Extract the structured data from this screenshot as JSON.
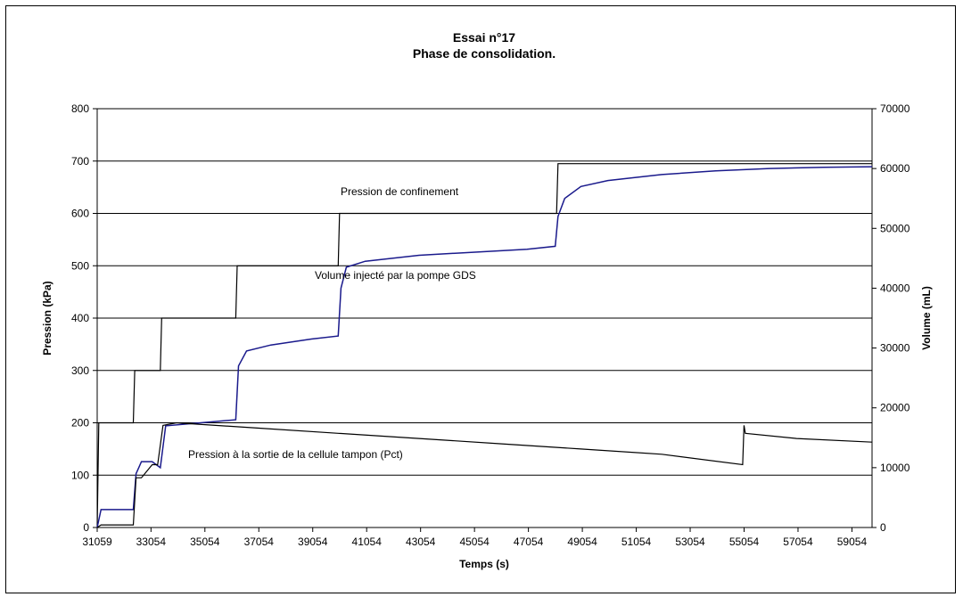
{
  "chart_data": {
    "type": "line",
    "title": "Essai n°17",
    "subtitle": "Phase de consolidation.",
    "xlabel": "Temps (s)",
    "ylabel_left": "Pression (kPa)",
    "ylabel_right": "Volume (mL)",
    "xlim": [
      31059,
      59800
    ],
    "ylim_left": [
      0,
      800
    ],
    "ylim_right": [
      0,
      70000
    ],
    "x_ticks": [
      "31059",
      "33054",
      "35054",
      "37054",
      "39054",
      "41054",
      "43054",
      "45054",
      "47054",
      "49054",
      "51054",
      "53054",
      "55054",
      "57054",
      "59054"
    ],
    "y_ticks_left": [
      "0",
      "100",
      "200",
      "300",
      "400",
      "500",
      "600",
      "700",
      "800"
    ],
    "y_ticks_right": [
      "0",
      "10000",
      "20000",
      "30000",
      "40000",
      "50000",
      "60000",
      "70000"
    ],
    "grid": "horizontal",
    "series": [
      {
        "name": "Pression de confinement",
        "axis": "left",
        "color": "#000000",
        "x": [
          31059,
          31120,
          31200,
          32400,
          32450,
          33400,
          33450,
          36200,
          36250,
          40000,
          40050,
          48100,
          48150,
          59800
        ],
        "y": [
          0,
          200,
          200,
          200,
          300,
          300,
          400,
          400,
          500,
          500,
          600,
          600,
          695,
          695
        ]
      },
      {
        "name": "Volume injecté par la pompe GDS",
        "axis": "right",
        "color": "#1a1a8c",
        "x": [
          31059,
          31200,
          32400,
          32500,
          32600,
          32700,
          33100,
          33400,
          33600,
          36200,
          36300,
          36600,
          37500,
          39000,
          40000,
          40100,
          40300,
          41000,
          43000,
          45000,
          47000,
          48050,
          48150,
          48400,
          49000,
          50000,
          52000,
          54000,
          56000,
          58000,
          59800
        ],
        "y": [
          0,
          3000,
          3000,
          9000,
          10000,
          11000,
          11000,
          10000,
          17000,
          18000,
          27000,
          29500,
          30500,
          31500,
          32000,
          40000,
          43500,
          44500,
          45500,
          46000,
          46500,
          47000,
          52000,
          55000,
          57000,
          58000,
          59000,
          59600,
          60000,
          60200,
          60300
        ]
      },
      {
        "name": "Pression à la sortie de la cellule tampon (Pct)",
        "axis": "left",
        "color": "#000000",
        "x": [
          31059,
          31200,
          32400,
          32500,
          32700,
          33100,
          33300,
          33500,
          34000,
          37000,
          40000,
          43000,
          46000,
          49000,
          52000,
          55000,
          55050,
          55100,
          57000,
          59800
        ],
        "y": [
          0,
          5,
          5,
          95,
          95,
          120,
          120,
          195,
          200,
          190,
          180,
          170,
          160,
          150,
          140,
          120,
          195,
          180,
          170,
          163
        ]
      }
    ],
    "annotations": [
      {
        "text": "Pression de confinement",
        "series": 0
      },
      {
        "text": "Volume injecté par la pompe GDS",
        "series": 1
      },
      {
        "text": "Pression à la sortie de la cellule tampon (Pct)",
        "series": 2
      }
    ]
  }
}
